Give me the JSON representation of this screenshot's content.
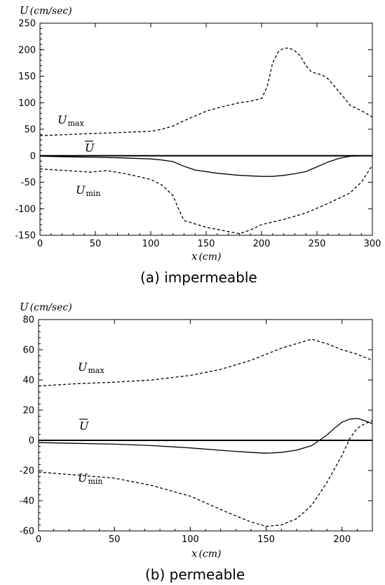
{
  "chart_data": [
    {
      "type": "line",
      "caption": "(a) impermeable",
      "ylabel": "U",
      "ylabel_unit": "(cm/sec)",
      "xlabel": "x",
      "xlabel_unit": "(cm)",
      "xlim": [
        0,
        300
      ],
      "ylim": [
        -150,
        250
      ],
      "xticks": [
        0,
        50,
        100,
        150,
        200,
        250,
        300
      ],
      "yticks": [
        -150,
        -100,
        -50,
        0,
        50,
        100,
        150,
        200,
        250
      ],
      "grid": false,
      "series": [
        {
          "name": "U_max",
          "label_main": "U",
          "label_sub": "max",
          "style": "dashed",
          "x": [
            0,
            25,
            50,
            75,
            100,
            110,
            120,
            130,
            140,
            150,
            160,
            170,
            180,
            190,
            200,
            205,
            210,
            215,
            220,
            225,
            230,
            235,
            240,
            245,
            250,
            255,
            260,
            265,
            270,
            275,
            280,
            290,
            300
          ],
          "y": [
            38,
            40,
            42,
            44,
            46,
            50,
            56,
            66,
            75,
            84,
            90,
            95,
            100,
            103,
            108,
            130,
            175,
            196,
            203,
            203,
            198,
            188,
            170,
            158,
            155,
            152,
            145,
            133,
            120,
            108,
            95,
            85,
            73
          ]
        },
        {
          "name": "U_bar",
          "label_main": "U",
          "label_sub": "",
          "overline": true,
          "style": "solid",
          "x": [
            0,
            300
          ],
          "y": [
            0,
            0
          ]
        },
        {
          "name": "U_mean_curve",
          "style": "solid",
          "x": [
            0,
            25,
            50,
            75,
            100,
            110,
            120,
            130,
            140,
            160,
            180,
            200,
            210,
            220,
            230,
            240,
            250,
            260,
            270,
            280,
            290,
            300
          ],
          "y": [
            -1,
            -2,
            -3,
            -4,
            -6,
            -8,
            -11,
            -20,
            -27,
            -33,
            -37,
            -39,
            -39,
            -37,
            -34,
            -30,
            -21,
            -12,
            -5,
            -1,
            0,
            0
          ]
        },
        {
          "name": "U_min",
          "label_main": "U",
          "label_sub": "min",
          "style": "dashed",
          "x": [
            0,
            25,
            45,
            60,
            75,
            90,
            100,
            110,
            120,
            125,
            130,
            150,
            170,
            180,
            190,
            200,
            220,
            240,
            260,
            280,
            290,
            300
          ],
          "y": [
            -25,
            -28,
            -31,
            -28,
            -33,
            -40,
            -45,
            -55,
            -75,
            -100,
            -122,
            -135,
            -143,
            -147,
            -140,
            -130,
            -120,
            -108,
            -90,
            -70,
            -50,
            -18
          ]
        }
      ]
    },
    {
      "type": "line",
      "caption": "(b) permeable",
      "ylabel": "U",
      "ylabel_unit": "(cm/sec)",
      "xlabel": "x",
      "xlabel_unit": "(cm)",
      "xlim": [
        0,
        220
      ],
      "ylim": [
        -60,
        80
      ],
      "xticks": [
        0,
        50,
        100,
        150,
        200
      ],
      "yticks": [
        -60,
        -40,
        -20,
        0,
        20,
        40,
        60,
        80
      ],
      "grid": false,
      "series": [
        {
          "name": "U_max",
          "label_main": "U",
          "label_sub": "max",
          "style": "dashed",
          "x": [
            0,
            25,
            50,
            75,
            100,
            120,
            140,
            160,
            180,
            190,
            200,
            210,
            215,
            220
          ],
          "y": [
            36,
            37.5,
            38.5,
            40,
            43,
            47,
            53,
            61,
            67,
            64,
            60,
            57,
            55,
            53
          ]
        },
        {
          "name": "U_bar",
          "label_main": "U",
          "label_sub": "",
          "overline": true,
          "style": "solid",
          "x": [
            0,
            220
          ],
          "y": [
            0,
            0
          ]
        },
        {
          "name": "U_mean_curve",
          "style": "solid",
          "x": [
            0,
            25,
            50,
            75,
            100,
            125,
            140,
            150,
            160,
            170,
            180,
            185,
            190,
            195,
            200,
            205,
            210,
            215,
            220
          ],
          "y": [
            -1.5,
            -2,
            -2.5,
            -3.5,
            -5,
            -7,
            -8,
            -8.5,
            -8,
            -6.5,
            -3.5,
            0,
            3.5,
            8,
            12,
            14,
            14.5,
            13,
            11
          ]
        },
        {
          "name": "U_min",
          "label_main": "U",
          "label_sub": "min",
          "style": "dashed",
          "x": [
            0,
            25,
            50,
            75,
            100,
            125,
            140,
            150,
            160,
            170,
            180,
            190,
            200,
            205,
            210,
            215,
            220
          ],
          "y": [
            -21,
            -23,
            -25,
            -30,
            -37,
            -48,
            -54,
            -57,
            -56,
            -52,
            -43,
            -28,
            -10,
            1,
            8,
            11,
            13
          ]
        }
      ]
    }
  ]
}
